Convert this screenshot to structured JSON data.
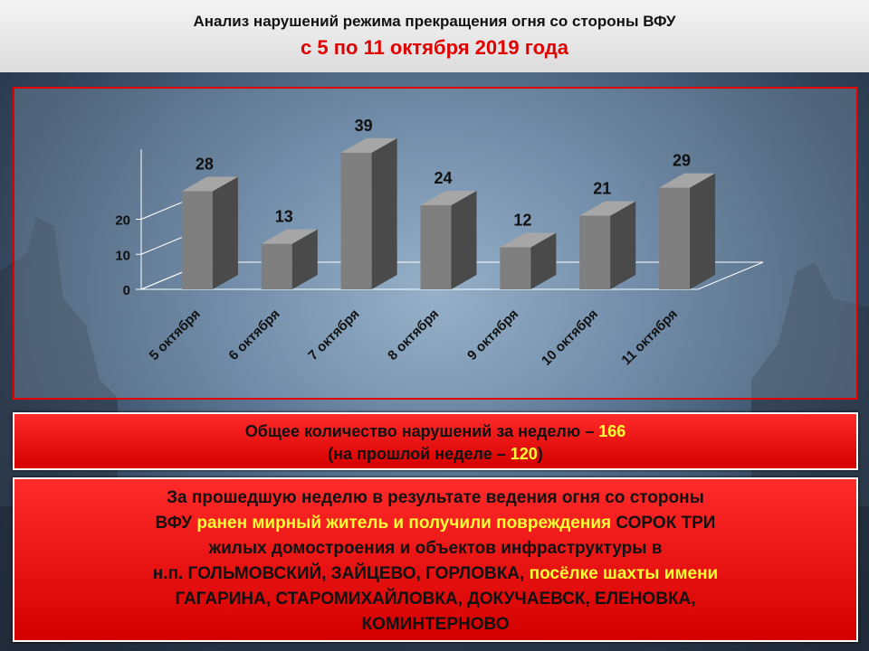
{
  "header": {
    "title_line1": "Анализ нарушений режима прекращения огня со стороны ВФУ",
    "title_line2": "с 5 по 11 октября 2019 года"
  },
  "chart_data": {
    "type": "bar",
    "categories": [
      "5 октября",
      "6 октября",
      "7 октября",
      "8 октября",
      "9 октября",
      "10 октября",
      "11 октября"
    ],
    "values": [
      28,
      13,
      39,
      24,
      12,
      21,
      29
    ],
    "title": "",
    "xlabel": "",
    "ylabel": "",
    "yticks": [
      "0",
      "10",
      "20"
    ],
    "ylim": [
      0,
      40
    ],
    "grid": false,
    "style": "3d-column",
    "bar_color": "#7f7f7f"
  },
  "totals": {
    "line1_text": "Общее количество нарушений за неделю – ",
    "line1_value": "166",
    "line2_open": "(на прошлой неделе – ",
    "line2_value": "120",
    "line2_close": ")"
  },
  "summary": {
    "l1": "За прошедшую неделю в результате ведения огня со стороны",
    "l2_a": "ВФУ",
    "l2_b": " ранен мирный житель и получили повреждения ",
    "l2_c": "СОРОК ТРИ",
    "l3": "жилых домостроения и объектов инфраструктуры в",
    "l4_a": "н.п. ГОЛЬМОВСКИЙ, ЗАЙЦЕВО, ГОРЛОВКА,",
    "l4_b": " посёлке шахты имени",
    "l5": "ГАГАРИНА, СТАРОМИХАЙЛОВКА, ДОКУЧАЕВСК, ЕЛЕНОВКА,",
    "l6": "КОМИНТЕРНОВО"
  },
  "colors": {
    "accent_red": "#e00000",
    "highlight_yellow": "#ffff33",
    "bar_front": "#7f7f7f",
    "bar_side": "#4a4a4a",
    "bar_top": "#a6a6a6"
  }
}
